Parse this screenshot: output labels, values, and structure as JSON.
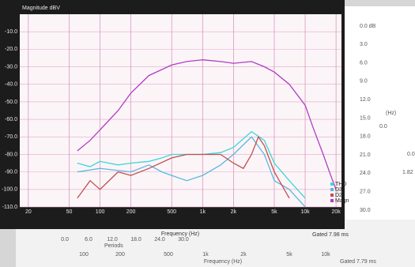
{
  "chart_data": {
    "type": "line",
    "y_axis_label": "Magnitude dBV",
    "x_axis_label": "Frequency (Hz)",
    "annotation": "Gated 7.98 ms",
    "x_scale": "log",
    "grid": true,
    "legend_position": "lower right",
    "xlim": [
      16.5,
      22600
    ],
    "ylim": [
      -110,
      0
    ],
    "xticks": [
      20,
      50,
      100,
      200,
      500,
      {
        "value": 1000,
        "label": "1k"
      },
      {
        "value": 2000,
        "label": "2k"
      },
      {
        "value": 5000,
        "label": "5k"
      },
      {
        "value": 10000,
        "label": "10k"
      },
      {
        "value": 20000,
        "label": "20k"
      }
    ],
    "yticks": [
      {
        "value": -10,
        "label": "-10.0"
      },
      {
        "value": -20,
        "label": "-20.0"
      },
      {
        "value": -30,
        "label": "-30.0"
      },
      {
        "value": -40,
        "label": "-40.0"
      },
      {
        "value": -50,
        "label": "-50.0"
      },
      {
        "value": -60,
        "label": "-60.0"
      },
      {
        "value": -70,
        "label": "-70.0"
      },
      {
        "value": -80,
        "label": "-80.0"
      },
      {
        "value": -90,
        "label": "-90.0"
      },
      {
        "value": -100,
        "label": "-100.0"
      },
      {
        "value": -110,
        "label": "-110.0"
      }
    ],
    "series": [
      {
        "name": "THD",
        "color": "#3fd6d6",
        "x": [
          60,
          80,
          100,
          150,
          200,
          300,
          400,
          500,
          700,
          1000,
          1500,
          2000,
          3000,
          4000,
          5000,
          7000,
          10000
        ],
        "values": [
          -85,
          -87,
          -84,
          -86,
          -85,
          -84,
          -82,
          -80,
          -80,
          -80,
          -79,
          -76,
          -67,
          -72,
          -85,
          -95,
          -105
        ]
      },
      {
        "name": "D3",
        "color": "#5ab8e0",
        "x": [
          60,
          100,
          200,
          300,
          400,
          500,
          700,
          1000,
          1500,
          2000,
          3000,
          4000,
          5000,
          7000,
          10000
        ],
        "values": [
          -90,
          -88,
          -90,
          -86,
          -90,
          -92,
          -95,
          -92,
          -86,
          -80,
          -70,
          -80,
          -95,
          -100,
          -110
        ]
      },
      {
        "name": "D2",
        "color": "#c0504d",
        "x": [
          60,
          80,
          100,
          150,
          200,
          300,
          500,
          700,
          1000,
          1500,
          2000,
          2500,
          3000,
          3500,
          4000,
          5000,
          7000
        ],
        "values": [
          -105,
          -95,
          -100,
          -90,
          -92,
          -88,
          -82,
          -80,
          -80,
          -80,
          -85,
          -88,
          -80,
          -70,
          -75,
          -90,
          -105
        ]
      },
      {
        "name": "Magn",
        "color": "#b23cc4",
        "x": [
          60,
          80,
          100,
          150,
          200,
          300,
          500,
          700,
          1000,
          1500,
          2000,
          3000,
          4000,
          5000,
          7000,
          10000,
          12000,
          15000,
          18000,
          20000
        ],
        "values": [
          -78,
          -72,
          -66,
          -55,
          -45,
          -35,
          -29,
          -27,
          -26,
          -27,
          -28,
          -27,
          -30,
          -33,
          -40,
          -52,
          -65,
          -80,
          -93,
          -100
        ]
      }
    ]
  },
  "background_panels": {
    "right_scale": [
      "0.0 dB",
      "3.0",
      "6.0",
      "9.0",
      "12.0",
      "15.0",
      "18.0",
      "21.0",
      "24.0",
      "27.0",
      "30.0"
    ],
    "right_fragments": [
      "(Hz)",
      "0.0",
      "0.0",
      "1.82"
    ],
    "periods_ticks": [
      "0.0",
      "6.0",
      "12.0",
      "18.0",
      "24.0",
      "30.0"
    ],
    "periods_label": "Periods",
    "freq_ticks": [
      "100",
      "200",
      "500",
      "1k",
      "2k",
      "5k",
      "10k"
    ],
    "freq_label": "Frequency (Hz)",
    "gated": "Gated 7.79 ms"
  }
}
